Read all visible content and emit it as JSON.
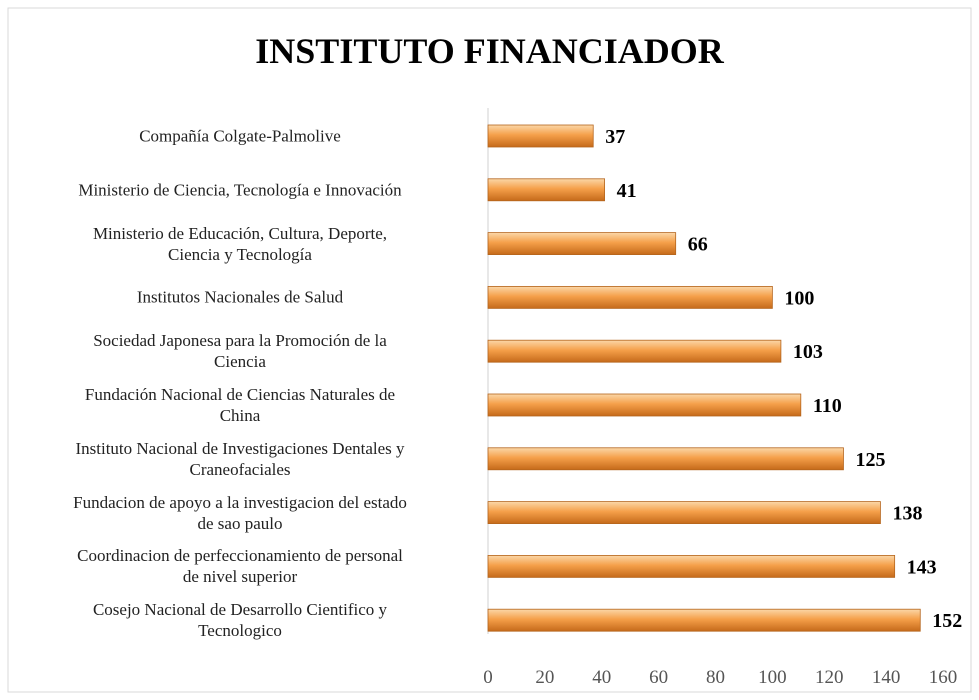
{
  "chart_data": {
    "type": "bar",
    "orientation": "horizontal",
    "title": "INSTITUTO FINANCIADOR",
    "categories": [
      "Compañía Colgate-Palmolive",
      "Ministerio de Ciencia, Tecnología e Innovación",
      "Ministerio de Educación, Cultura, Deporte,\nCiencia y Tecnología",
      "Institutos Nacionales de Salud",
      "Sociedad Japonesa para la Promoción de la\nCiencia",
      "Fundación Nacional de Ciencias Naturales de\nChina",
      "Instituto Nacional de Investigaciones Dentales y\nCraneofaciales",
      "Fundacion de apoyo a la investigacion del estado\nde sao paulo",
      "Coordinacion de perfeccionamiento de personal\nde nivel superior",
      "Cosejo Nacional de Desarrollo Cientifico y\nTecnologico"
    ],
    "values": [
      37,
      41,
      66,
      100,
      103,
      110,
      125,
      138,
      143,
      152
    ],
    "color": "#f5a04a",
    "xlim": [
      0,
      160
    ],
    "xticks": [
      0,
      20,
      40,
      60,
      80,
      100,
      120,
      140,
      160
    ]
  }
}
